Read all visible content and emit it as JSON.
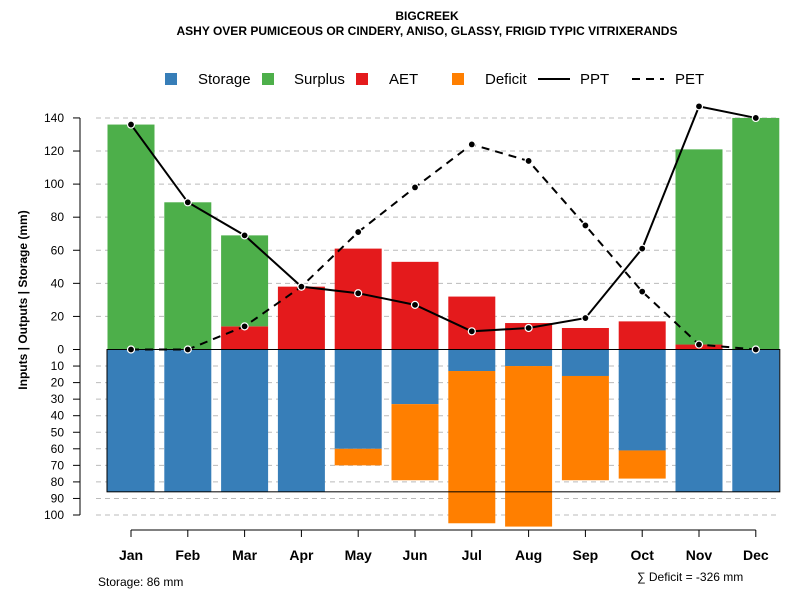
{
  "chart_data": {
    "type": "bar",
    "title": "BIGCREEK",
    "subtitle": "ASHY OVER PUMICEOUS OR CINDERY, ANISO, GLASSY, FRIGID TYPIC VITRIXERANDS",
    "ylabel": "Inputs | Outputs | Storage    (mm)",
    "categories": [
      "Jan",
      "Feb",
      "Mar",
      "Apr",
      "May",
      "Jun",
      "Jul",
      "Aug",
      "Sep",
      "Oct",
      "Nov",
      "Dec"
    ],
    "ylim_upper": [
      0,
      140
    ],
    "ylim_lower": [
      0,
      100
    ],
    "upper_ticks": [
      0,
      20,
      40,
      60,
      80,
      100,
      120,
      140
    ],
    "lower_ticks": [
      10,
      20,
      30,
      40,
      50,
      60,
      70,
      80,
      90,
      100
    ],
    "grid": true,
    "legend_position": "top",
    "colors": {
      "storage": "#377EB8",
      "surplus": "#4DAF4A",
      "aet": "#E41A1C",
      "deficit": "#FF7F00",
      "line": "#000000",
      "grid": "#bbbbbb"
    },
    "legend": [
      {
        "key": "storage",
        "label": "Storage",
        "kind": "box"
      },
      {
        "key": "surplus",
        "label": "Surplus",
        "kind": "box"
      },
      {
        "key": "aet",
        "label": "AET",
        "kind": "box"
      },
      {
        "key": "deficit",
        "label": "Deficit",
        "kind": "box"
      },
      {
        "key": "ppt",
        "label": "PPT",
        "kind": "solid"
      },
      {
        "key": "pet",
        "label": "PET",
        "kind": "dashed"
      }
    ],
    "series": [
      {
        "name": "AET",
        "values": [
          0,
          0,
          14,
          38,
          61,
          53,
          32,
          16,
          13,
          17,
          3,
          0
        ]
      },
      {
        "name": "Surplus",
        "values": [
          136,
          89,
          55,
          0,
          0,
          0,
          0,
          0,
          0,
          0,
          118,
          140
        ]
      },
      {
        "name": "Storage",
        "values": [
          86,
          86,
          86,
          86,
          60,
          33,
          13,
          10,
          16,
          61,
          86,
          86
        ]
      },
      {
        "name": "Deficit",
        "values": [
          0,
          0,
          0,
          0,
          10,
          46,
          92,
          97,
          63,
          17,
          0,
          0
        ]
      },
      {
        "name": "PPT",
        "values": [
          136,
          89,
          69,
          38,
          34,
          27,
          11,
          13,
          19,
          61,
          147,
          140
        ]
      },
      {
        "name": "PET",
        "values": [
          0,
          0,
          14,
          38,
          71,
          98,
          124,
          114,
          75,
          35,
          3,
          0
        ]
      }
    ],
    "storage_capacity": 86,
    "storage_note": "Storage: 86 mm",
    "deficit_note": "∑ Deficit = -326 mm"
  }
}
